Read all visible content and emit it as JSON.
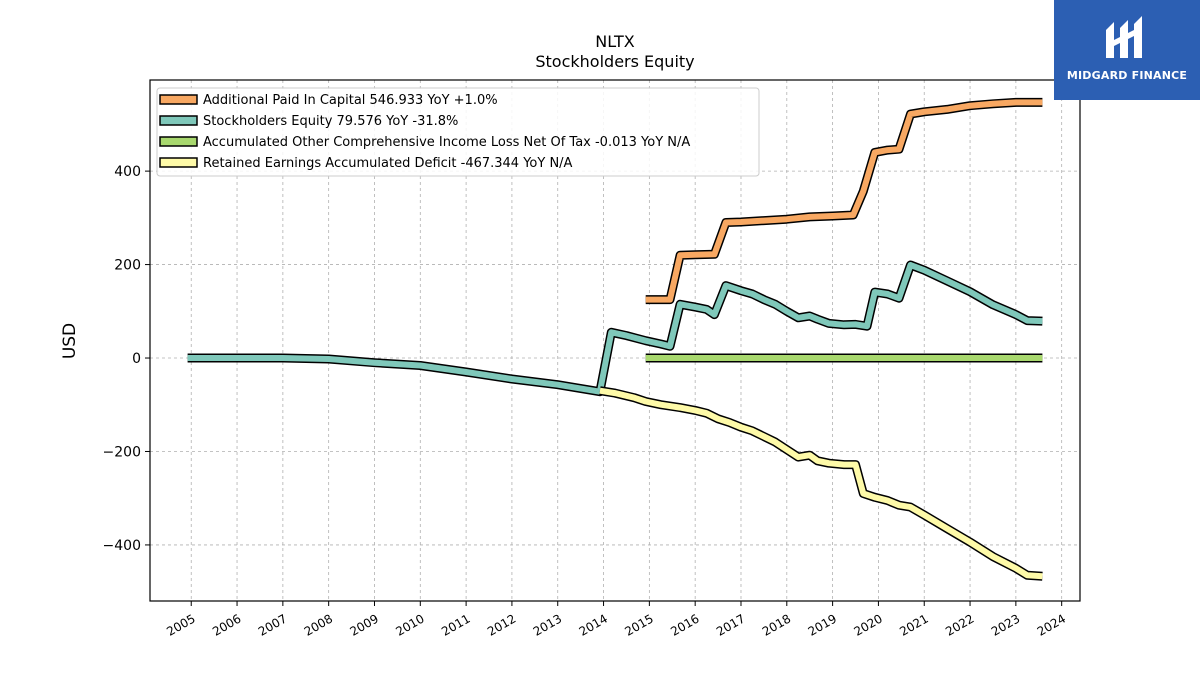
{
  "chart_data": {
    "type": "line",
    "title": "NLTX",
    "subtitle": "Stockholders  Equity",
    "xlabel": "",
    "ylabel": "USD",
    "xlim": [
      2004.1,
      2024.4
    ],
    "ylim": [
      -520,
      595
    ],
    "x_ticks": [
      "2005",
      "2006",
      "2007",
      "2008",
      "2009",
      "2010",
      "2011",
      "2012",
      "2013",
      "2014",
      "2015",
      "2016",
      "2017",
      "2018",
      "2019",
      "2020",
      "2021",
      "2022",
      "2023",
      "2024"
    ],
    "y_ticks": [
      400,
      200,
      0,
      -200,
      -400
    ],
    "y_tick_labels": [
      "400",
      "200",
      "0",
      "−200",
      "−400"
    ],
    "grid": true,
    "legend_position": "top-left",
    "series": [
      {
        "name": "Additional Paid In Capital  546.933 YoY +1.0%",
        "color": "#f8a862",
        "points": [
          [
            2014.92,
            125
          ],
          [
            2015.25,
            125
          ],
          [
            2015.45,
            125
          ],
          [
            2015.67,
            220
          ],
          [
            2016.0,
            221
          ],
          [
            2016.42,
            222
          ],
          [
            2016.67,
            290
          ],
          [
            2017.0,
            291
          ],
          [
            2017.5,
            294
          ],
          [
            2018.0,
            297
          ],
          [
            2018.5,
            302
          ],
          [
            2019.0,
            304
          ],
          [
            2019.45,
            306
          ],
          [
            2019.67,
            357
          ],
          [
            2019.92,
            440
          ],
          [
            2020.2,
            445
          ],
          [
            2020.45,
            447
          ],
          [
            2020.7,
            522
          ],
          [
            2021.0,
            527
          ],
          [
            2021.5,
            532
          ],
          [
            2022.0,
            540
          ],
          [
            2022.5,
            544
          ],
          [
            2023.0,
            547
          ],
          [
            2023.58,
            547
          ]
        ]
      },
      {
        "name": "Stockholders Equity  79.576 YoY -31.8%",
        "color": "#7fc8ba",
        "points": [
          [
            2004.92,
            0
          ],
          [
            2006.0,
            0
          ],
          [
            2007.0,
            0
          ],
          [
            2008.0,
            -2
          ],
          [
            2009.0,
            -10
          ],
          [
            2010.0,
            -16
          ],
          [
            2011.0,
            -30
          ],
          [
            2012.0,
            -45
          ],
          [
            2013.0,
            -57
          ],
          [
            2013.92,
            -72
          ],
          [
            2014.17,
            55
          ],
          [
            2014.5,
            48
          ],
          [
            2014.92,
            37
          ],
          [
            2015.25,
            30
          ],
          [
            2015.45,
            25
          ],
          [
            2015.67,
            115
          ],
          [
            2016.0,
            109
          ],
          [
            2016.25,
            104
          ],
          [
            2016.42,
            93
          ],
          [
            2016.67,
            155
          ],
          [
            2017.0,
            144
          ],
          [
            2017.25,
            137
          ],
          [
            2017.5,
            125
          ],
          [
            2017.75,
            115
          ],
          [
            2018.0,
            100
          ],
          [
            2018.25,
            86
          ],
          [
            2018.5,
            90
          ],
          [
            2018.67,
            83
          ],
          [
            2018.92,
            74
          ],
          [
            2019.25,
            71
          ],
          [
            2019.5,
            72
          ],
          [
            2019.75,
            68
          ],
          [
            2019.92,
            141
          ],
          [
            2020.2,
            137
          ],
          [
            2020.45,
            128
          ],
          [
            2020.7,
            199
          ],
          [
            2021.0,
            188
          ],
          [
            2021.5,
            165
          ],
          [
            2022.0,
            142
          ],
          [
            2022.5,
            114
          ],
          [
            2023.0,
            93
          ],
          [
            2023.25,
            80
          ],
          [
            2023.58,
            79
          ]
        ]
      },
      {
        "name": "Accumulated Other Comprehensive Income Loss Net Of Tax  -0.013 YoY N/A",
        "color": "#a8d86e",
        "points": [
          [
            2014.92,
            0
          ],
          [
            2016.0,
            0
          ],
          [
            2017.0,
            0
          ],
          [
            2018.0,
            0
          ],
          [
            2019.0,
            0
          ],
          [
            2020.0,
            0
          ],
          [
            2021.0,
            0
          ],
          [
            2022.0,
            0
          ],
          [
            2023.58,
            0
          ]
        ]
      },
      {
        "name": "Retained Earnings Accumulated Deficit  -467.344 YoY N/A",
        "color": "#fefaa8",
        "points": [
          [
            2013.92,
            -70
          ],
          [
            2014.25,
            -75
          ],
          [
            2014.67,
            -85
          ],
          [
            2014.92,
            -93
          ],
          [
            2015.25,
            -100
          ],
          [
            2015.67,
            -106
          ],
          [
            2016.0,
            -112
          ],
          [
            2016.25,
            -118
          ],
          [
            2016.5,
            -130
          ],
          [
            2016.75,
            -138
          ],
          [
            2017.0,
            -148
          ],
          [
            2017.25,
            -156
          ],
          [
            2017.5,
            -168
          ],
          [
            2017.75,
            -180
          ],
          [
            2018.0,
            -196
          ],
          [
            2018.25,
            -212
          ],
          [
            2018.5,
            -208
          ],
          [
            2018.67,
            -220
          ],
          [
            2018.92,
            -225
          ],
          [
            2019.25,
            -228
          ],
          [
            2019.5,
            -228
          ],
          [
            2019.67,
            -290
          ],
          [
            2019.92,
            -298
          ],
          [
            2020.2,
            -305
          ],
          [
            2020.45,
            -315
          ],
          [
            2020.7,
            -319
          ],
          [
            2021.0,
            -336
          ],
          [
            2021.5,
            -365
          ],
          [
            2022.0,
            -394
          ],
          [
            2022.5,
            -425
          ],
          [
            2023.0,
            -450
          ],
          [
            2023.25,
            -465
          ],
          [
            2023.58,
            -467
          ]
        ]
      }
    ]
  },
  "logo": {
    "text": "MIDGARD FINANCE",
    "background": "#2c5fb3"
  }
}
